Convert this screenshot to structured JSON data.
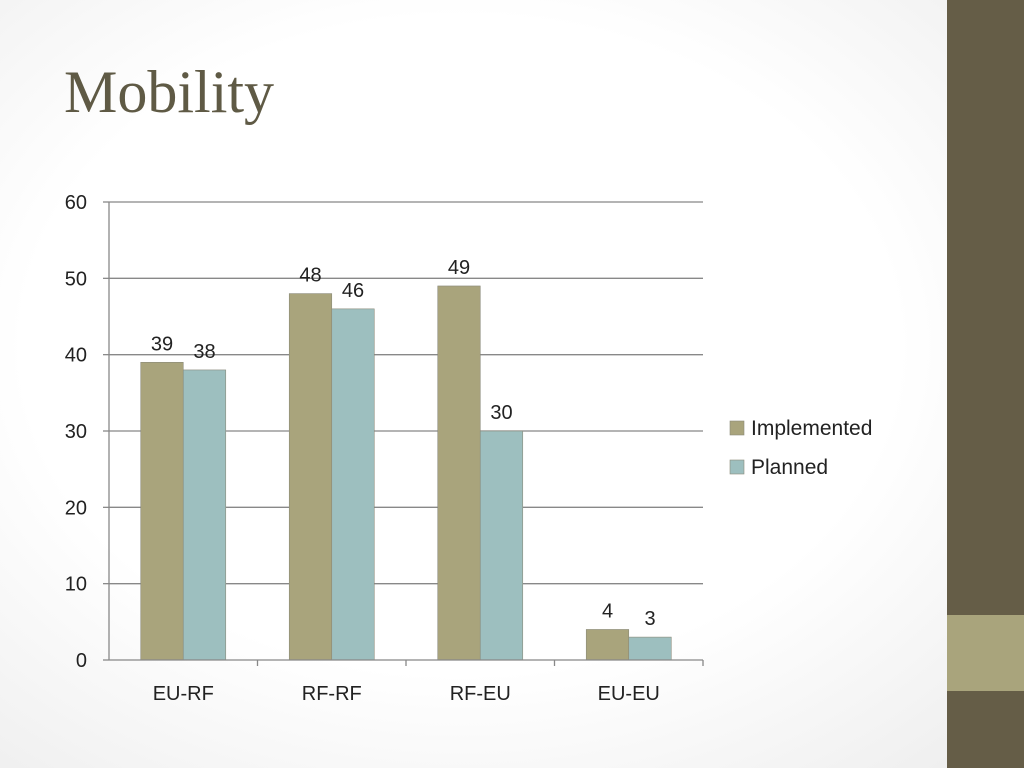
{
  "slide": {
    "title": "Mobility"
  },
  "colors": {
    "title": "#5f5a45",
    "sidebar": "#655d47",
    "sidebar_accent": "#a9a47c",
    "implemented": "#a9a47c",
    "planned": "#9dbfbf",
    "gridline": "#888888"
  },
  "chart_data": {
    "type": "bar",
    "categories": [
      "EU-RF",
      "RF-RF",
      "RF-EU",
      "EU-EU"
    ],
    "series": [
      {
        "name": "Implemented",
        "values": [
          39,
          48,
          49,
          4
        ]
      },
      {
        "name": "Planned",
        "values": [
          38,
          46,
          30,
          3
        ]
      }
    ],
    "ylim": [
      0,
      60
    ],
    "yticks": [
      0,
      10,
      20,
      30,
      40,
      50,
      60
    ],
    "grid": true,
    "legend": "right",
    "data_labels": true
  }
}
